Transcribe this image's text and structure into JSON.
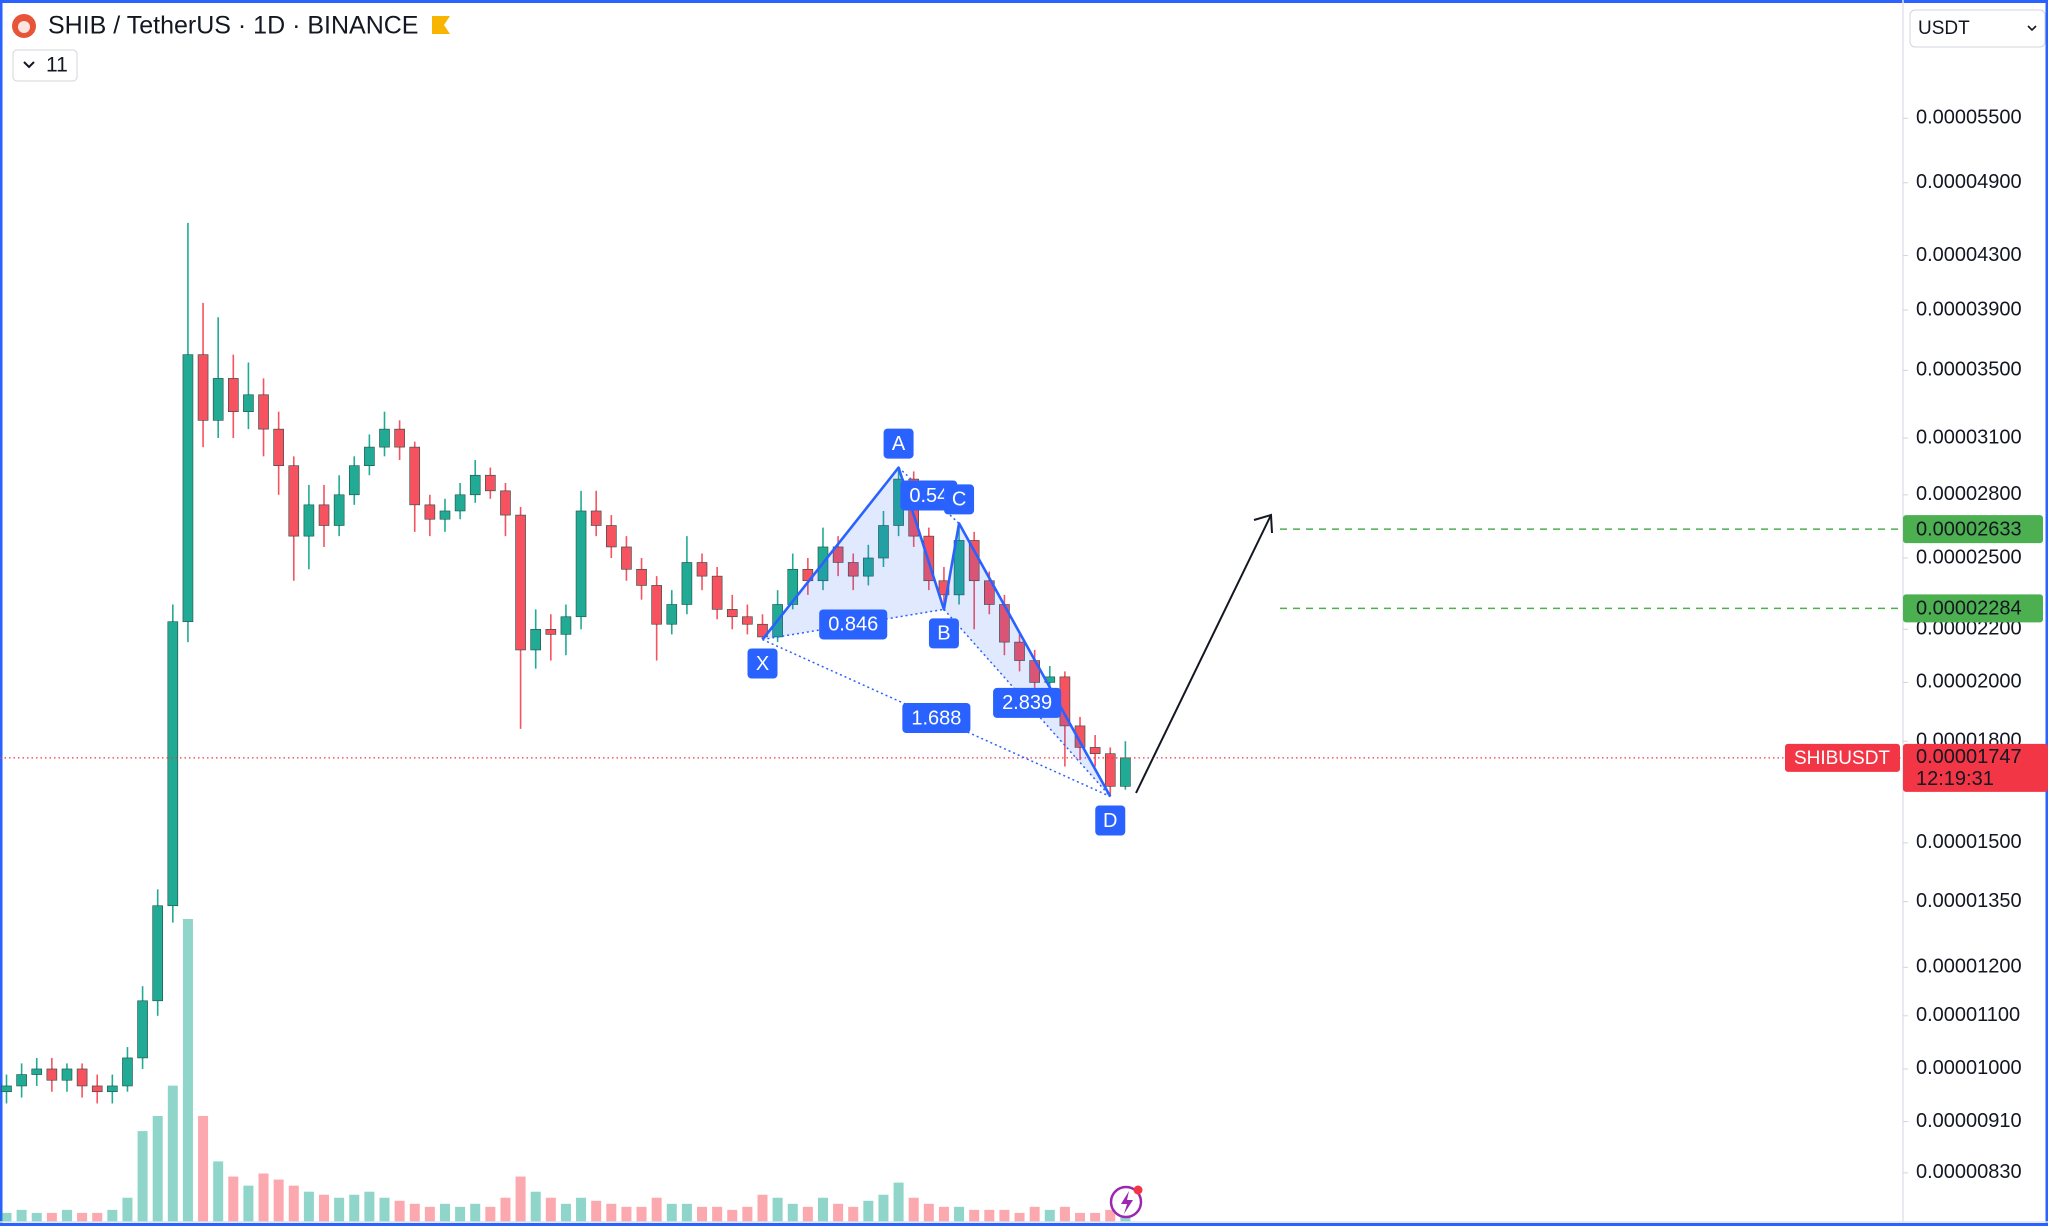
{
  "header": {
    "title": "SHIB / TetherUS · 1D · BINANCE",
    "indicators": 11,
    "currency": "USDT"
  },
  "chart_data": {
    "type": "candlestick",
    "log_scale": true,
    "ylim": [
      7.6e-06,
      6.8e-05
    ],
    "yticks": [
      {
        "value": 5.5e-05,
        "label": "0.00005500"
      },
      {
        "value": 4.9e-05,
        "label": "0.00004900"
      },
      {
        "value": 4.3e-05,
        "label": "0.00004300"
      },
      {
        "value": 3.9e-05,
        "label": "0.00003900"
      },
      {
        "value": 3.5e-05,
        "label": "0.00003500"
      },
      {
        "value": 3.1e-05,
        "label": "0.00003100"
      },
      {
        "value": 2.8e-05,
        "label": "0.00002800"
      },
      {
        "value": 2.5e-05,
        "label": "0.00002500"
      },
      {
        "value": 2.2e-05,
        "label": "0.00002200"
      },
      {
        "value": 2e-05,
        "label": "0.00002000"
      },
      {
        "value": 1.8e-05,
        "label": "0.00001800"
      },
      {
        "value": 1.5e-05,
        "label": "0.00001500"
      },
      {
        "value": 1.35e-05,
        "label": "0.00001350"
      },
      {
        "value": 1.2e-05,
        "label": "0.00001200"
      },
      {
        "value": 1.1e-05,
        "label": "0.00001100"
      },
      {
        "value": 1e-05,
        "label": "0.00001000"
      },
      {
        "value": 9.1e-06,
        "label": "0.00000910"
      },
      {
        "value": 8.3e-06,
        "label": "0.00000830"
      }
    ],
    "up_color": "#22ab94",
    "down_color": "#f7525f",
    "open": [
      9.6e-06,
      9.7e-06,
      9.9e-06,
      1e-05,
      9.8e-06,
      1e-05,
      9.7e-06,
      9.6e-06,
      9.7e-06,
      1.02e-05,
      1.13e-05,
      1.34e-05,
      2.23e-05,
      3.6e-05,
      3.2e-05,
      3.45e-05,
      3.25e-05,
      3.35e-05,
      3.15e-05,
      2.95e-05,
      2.6e-05,
      2.75e-05,
      2.65e-05,
      2.8e-05,
      2.95e-05,
      3.05e-05,
      3.15e-05,
      3.05e-05,
      2.75e-05,
      2.68e-05,
      2.72e-05,
      2.8e-05,
      2.9e-05,
      2.82e-05,
      2.7e-05,
      2.12e-05,
      2.2e-05,
      2.18e-05,
      2.25e-05,
      2.72e-05,
      2.65e-05,
      2.55e-05,
      2.45e-05,
      2.38e-05,
      2.22e-05,
      2.3e-05,
      2.48e-05,
      2.42e-05,
      2.28e-05,
      2.25e-05,
      2.22e-05,
      2.17e-05,
      2.3e-05,
      2.45e-05,
      2.4e-05,
      2.55e-05,
      2.48e-05,
      2.42e-05,
      2.5e-05,
      2.65e-05,
      2.88e-05,
      2.6e-05,
      2.4e-05,
      2.34e-05,
      2.58e-05,
      2.4e-05,
      2.3e-05,
      2.15e-05,
      2.08e-05,
      2e-05,
      2.02e-05,
      1.85e-05,
      1.78e-05,
      1.76e-05,
      1.66e-05
    ],
    "high": [
      9.9e-06,
      1.01e-05,
      1.02e-05,
      1.02e-05,
      1.01e-05,
      1.01e-05,
      9.9e-06,
      9.9e-06,
      1.04e-05,
      1.16e-05,
      1.38e-05,
      2.3e-05,
      4.56e-05,
      3.95e-05,
      3.85e-05,
      3.6e-05,
      3.55e-05,
      3.45e-05,
      3.25e-05,
      3e-05,
      2.85e-05,
      2.85e-05,
      2.9e-05,
      3e-05,
      3.12e-05,
      3.25e-05,
      3.2e-05,
      3.08e-05,
      2.8e-05,
      2.78e-05,
      2.86e-05,
      2.98e-05,
      2.94e-05,
      2.86e-05,
      2.74e-05,
      2.28e-05,
      2.26e-05,
      2.3e-05,
      2.82e-05,
      2.82e-05,
      2.7e-05,
      2.6e-05,
      2.5e-05,
      2.42e-05,
      2.36e-05,
      2.6e-05,
      2.52e-05,
      2.46e-05,
      2.34e-05,
      2.3e-05,
      2.26e-05,
      2.36e-05,
      2.52e-05,
      2.5e-05,
      2.64e-05,
      2.6e-05,
      2.52e-05,
      2.56e-05,
      2.72e-05,
      2.94e-05,
      2.92e-05,
      2.64e-05,
      2.46e-05,
      2.66e-05,
      2.62e-05,
      2.44e-05,
      2.34e-05,
      2.18e-05,
      2.12e-05,
      2.06e-05,
      2.04e-05,
      1.88e-05,
      1.82e-05,
      1.78e-05,
      1.8e-05
    ],
    "low": [
      9.4e-06,
      9.5e-06,
      9.7e-06,
      9.6e-06,
      9.6e-06,
      9.5e-06,
      9.4e-06,
      9.4e-06,
      9.6e-06,
      1e-05,
      1.1e-05,
      1.3e-05,
      2.15e-05,
      3.05e-05,
      3.1e-05,
      3.1e-05,
      3.15e-05,
      3e-05,
      2.8e-05,
      2.4e-05,
      2.45e-05,
      2.55e-05,
      2.6e-05,
      2.75e-05,
      2.9e-05,
      3e-05,
      2.98e-05,
      2.62e-05,
      2.6e-05,
      2.62e-05,
      2.68e-05,
      2.76e-05,
      2.78e-05,
      2.6e-05,
      1.84e-05,
      2.05e-05,
      2.08e-05,
      2.1e-05,
      2.2e-05,
      2.6e-05,
      2.5e-05,
      2.4e-05,
      2.32e-05,
      2.08e-05,
      2.18e-05,
      2.26e-05,
      2.36e-05,
      2.24e-05,
      2.2e-05,
      2.18e-05,
      2.16e-05,
      2.15e-05,
      2.28e-05,
      2.34e-05,
      2.36e-05,
      2.42e-05,
      2.36e-05,
      2.38e-05,
      2.46e-05,
      2.6e-05,
      2.55e-05,
      2.36e-05,
      2.28e-05,
      2.3e-05,
      2.2e-05,
      2.26e-05,
      2.1e-05,
      2.04e-05,
      1.96e-05,
      1.94e-05,
      1.72e-05,
      1.74e-05,
      1.72e-05,
      1.63e-05,
      1.65e-05
    ],
    "close": [
      9.7e-06,
      9.9e-06,
      1e-05,
      9.8e-06,
      1e-05,
      9.7e-06,
      9.6e-06,
      9.7e-06,
      1.02e-05,
      1.13e-05,
      1.34e-05,
      2.23e-05,
      3.6e-05,
      3.2e-05,
      3.45e-05,
      3.25e-05,
      3.35e-05,
      3.15e-05,
      2.95e-05,
      2.6e-05,
      2.75e-05,
      2.65e-05,
      2.8e-05,
      2.95e-05,
      3.05e-05,
      3.15e-05,
      3.05e-05,
      2.75e-05,
      2.68e-05,
      2.72e-05,
      2.8e-05,
      2.9e-05,
      2.82e-05,
      2.7e-05,
      2.12e-05,
      2.2e-05,
      2.18e-05,
      2.25e-05,
      2.72e-05,
      2.65e-05,
      2.55e-05,
      2.45e-05,
      2.38e-05,
      2.22e-05,
      2.3e-05,
      2.48e-05,
      2.42e-05,
      2.28e-05,
      2.25e-05,
      2.22e-05,
      2.17e-05,
      2.3e-05,
      2.45e-05,
      2.4e-05,
      2.55e-05,
      2.48e-05,
      2.42e-05,
      2.5e-05,
      2.65e-05,
      2.88e-05,
      2.6e-05,
      2.4e-05,
      2.34e-05,
      2.58e-05,
      2.4e-05,
      2.3e-05,
      2.15e-05,
      2.08e-05,
      2e-05,
      2.02e-05,
      1.85e-05,
      1.78e-05,
      1.76e-05,
      1.66e-05,
      1.747e-05
    ],
    "volume": [
      3,
      4,
      3,
      3,
      4,
      3,
      3,
      4,
      8,
      30,
      35,
      45,
      100,
      35,
      20,
      15,
      12,
      16,
      14,
      12,
      10,
      9,
      8,
      9,
      10,
      8,
      7,
      6,
      5,
      6,
      5,
      6,
      5,
      8,
      15,
      10,
      8,
      6,
      8,
      7,
      6,
      5,
      5,
      8,
      6,
      6,
      5,
      5,
      4,
      5,
      9,
      8,
      6,
      5,
      8,
      6,
      5,
      7,
      9,
      13,
      8,
      6,
      5,
      5,
      4,
      4,
      4,
      3,
      5,
      4,
      5,
      3,
      3,
      4,
      2
    ],
    "pattern": {
      "color": "#2962ff",
      "points": [
        {
          "label": "X",
          "bar": 50,
          "price": 2.16e-05
        },
        {
          "label": "A",
          "bar": 59,
          "price": 2.94e-05
        },
        {
          "label": "B",
          "bar": 62,
          "price": 2.28e-05
        },
        {
          "label": "C",
          "bar": 63,
          "price": 2.66e-05
        },
        {
          "label": "D",
          "bar": 73,
          "price": 1.63e-05
        }
      ],
      "ratios": [
        0.846,
        0.54,
        2.839,
        1.688
      ]
    },
    "targets": [
      {
        "value": 2.633e-05,
        "label": "0.00002633"
      },
      {
        "value": 2.284e-05,
        "label": "0.00002284"
      }
    ],
    "target_color": "#4caf50",
    "last_price": {
      "value": 1.747e-05,
      "label": "0.00001747"
    },
    "symbol": "SHIBUSDT",
    "countdown": "12:19:31",
    "last_color": "#f23645"
  }
}
